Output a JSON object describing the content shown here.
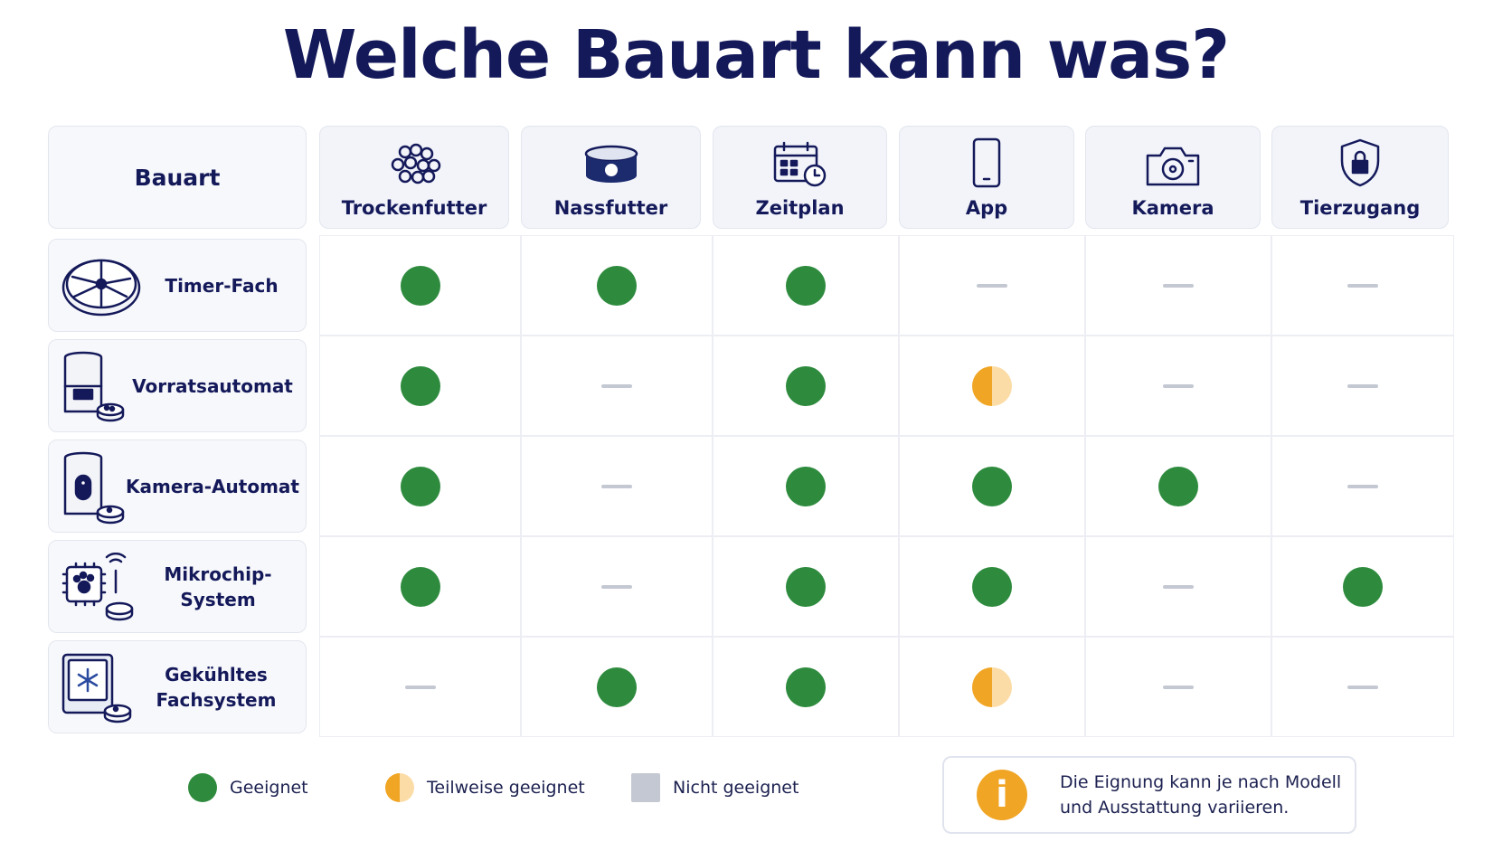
{
  "title": "Welche Bauart kann was?",
  "table": {
    "header_label": "Bauart",
    "columns": [
      "Trockenfutter",
      "Nassfutter",
      "Zeitplan",
      "App",
      "Kamera",
      "Tierzugang"
    ],
    "rows": [
      {
        "label": "Timer-Fach",
        "cells": [
          "yes",
          "yes",
          "yes",
          "no",
          "no",
          "no"
        ]
      },
      {
        "label": "Vorratsautomat",
        "cells": [
          "yes",
          "no",
          "yes",
          "partial",
          "no",
          "no"
        ]
      },
      {
        "label": "Kamera-Automat",
        "cells": [
          "yes",
          "no",
          "yes",
          "yes",
          "yes",
          "no"
        ]
      },
      {
        "label": "Mikrochip-System",
        "cells": [
          "yes",
          "no",
          "yes",
          "yes",
          "no",
          "yes"
        ]
      },
      {
        "label": "Gekühltes Fachsystem",
        "cells": [
          "no",
          "yes",
          "yes",
          "partial",
          "no",
          "no"
        ]
      }
    ]
  },
  "legend": [
    {
      "status": "yes",
      "label": "Geeignet"
    },
    {
      "status": "partial",
      "label": "Teilweise geeignet"
    },
    {
      "status": "no",
      "label": "Nicht geeignet"
    }
  ],
  "note": {
    "icon": "i",
    "lines": [
      "Die Eignung kann je nach Modell",
      "und Ausstattung variieren."
    ]
  }
}
